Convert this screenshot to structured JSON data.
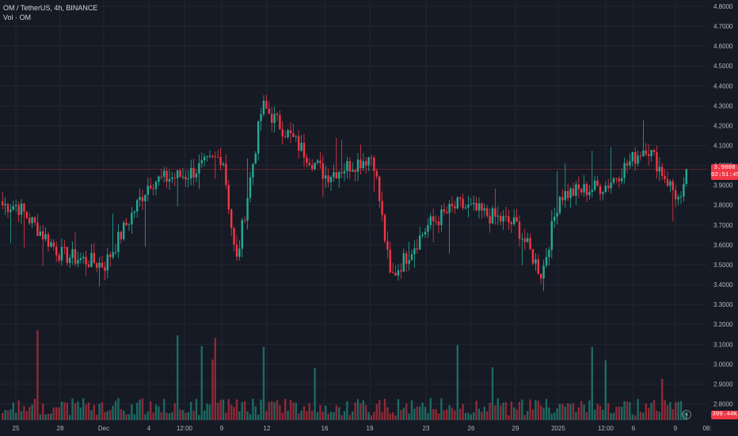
{
  "legend": {
    "symbol_line": "OM / TetherUS, 4h, BINANCE",
    "volume_line": "Vol · OM"
  },
  "current_price": {
    "value": 3.9808,
    "label": "3.9808",
    "countdown": "02:51:45"
  },
  "volume_tag": "399.44K",
  "lightning_icon": "⚡",
  "colors": {
    "background": "#161a25",
    "up": "#22ab94",
    "down": "#f23645",
    "grid": "#232631",
    "axis_text": "#b2b5be"
  },
  "chart_data": {
    "type": "candlestick",
    "title": "OM / TetherUS, 4h, BINANCE",
    "price_axis": {
      "range": [
        2.77,
        4.8
      ],
      "ticks": [
        "4.8000",
        "4.7000",
        "4.6000",
        "4.5000",
        "4.4000",
        "4.3000",
        "4.2000",
        "4.1000",
        "4.0000",
        "3.9000",
        "3.8000",
        "3.7000",
        "3.6000",
        "3.5000",
        "3.4000",
        "3.3000",
        "3.2000",
        "3.1000",
        "3.0000",
        "2.9000",
        "2.8000"
      ]
    },
    "time_axis": {
      "ticks": [
        "25",
        "28",
        "Dec",
        "4",
        "12:00",
        "9",
        "12",
        "16",
        "19",
        "23",
        "26",
        "29",
        "2025",
        "12:00",
        "6",
        "9",
        "08:"
      ]
    },
    "key_points": [
      {
        "t": "25",
        "price": 3.8
      },
      {
        "t": "28",
        "price": 3.55
      },
      {
        "t": "Dec",
        "price": 3.5
      },
      {
        "t": "4",
        "price": 3.92
      },
      {
        "t": "12:00",
        "price": 3.95
      },
      {
        "t": "9",
        "price": 4.05
      },
      {
        "t": "9",
        "price": 3.5
      },
      {
        "t": "12",
        "price": 4.3
      },
      {
        "t": "16",
        "price": 3.95
      },
      {
        "t": "19",
        "price": 4.05
      },
      {
        "t": "19",
        "price": 3.43
      },
      {
        "t": "23",
        "price": 3.7
      },
      {
        "t": "26",
        "price": 3.8
      },
      {
        "t": "29",
        "price": 3.7
      },
      {
        "t": "29",
        "price": 3.45
      },
      {
        "t": "2025",
        "price": 3.85
      },
      {
        "t": "12:00",
        "price": 3.9
      },
      {
        "t": "6",
        "price": 4.1
      },
      {
        "t": "9",
        "price": 3.8
      },
      {
        "t": "9",
        "price": 3.98
      }
    ],
    "current_price": 3.9808,
    "volume_last": "399.44K",
    "grid": true
  }
}
